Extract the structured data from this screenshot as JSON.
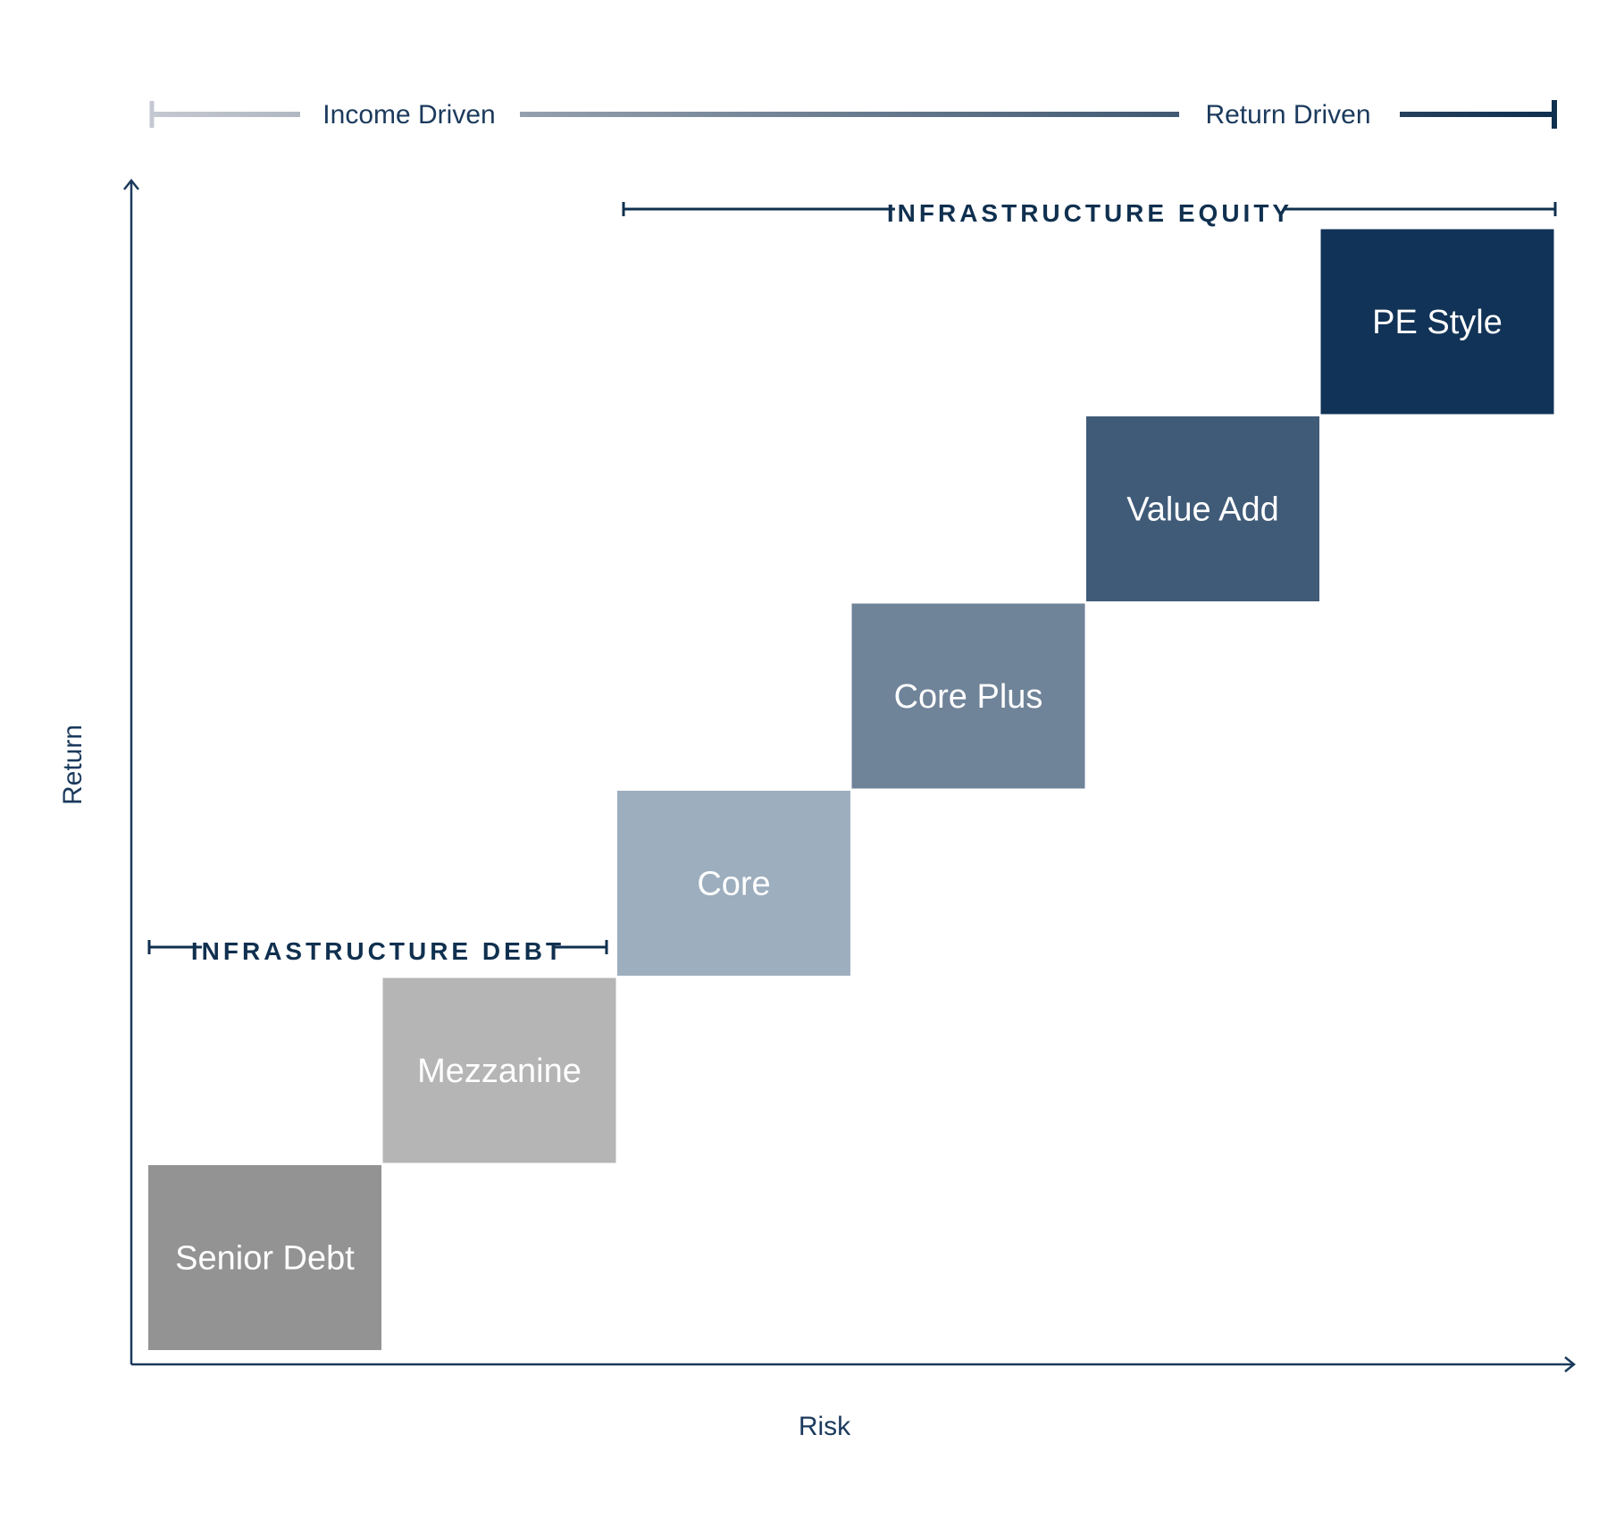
{
  "spectrum": {
    "left_label": "Income Driven",
    "right_label": "Return Driven",
    "gradient_start": "#c4c8d0",
    "gradient_end": "#10304f"
  },
  "axes": {
    "x_label": "Risk",
    "y_label": "Return",
    "color": "#1b3a5c"
  },
  "brackets": {
    "equity": "INFRASTRUCTURE EQUITY",
    "debt": "INFRASTRUCTURE DEBT",
    "color": "#10304f"
  },
  "blocks": [
    {
      "label": "Senior Debt",
      "color": "#939393"
    },
    {
      "label": "Mezzanine",
      "color": "#b5b5b5"
    },
    {
      "label": "Core",
      "color": "#9daebe"
    },
    {
      "label": "Core Plus",
      "color": "#6f8399"
    },
    {
      "label": "Value Add",
      "color": "#405b78"
    },
    {
      "label": "PE Style",
      "color": "#113357"
    }
  ]
}
